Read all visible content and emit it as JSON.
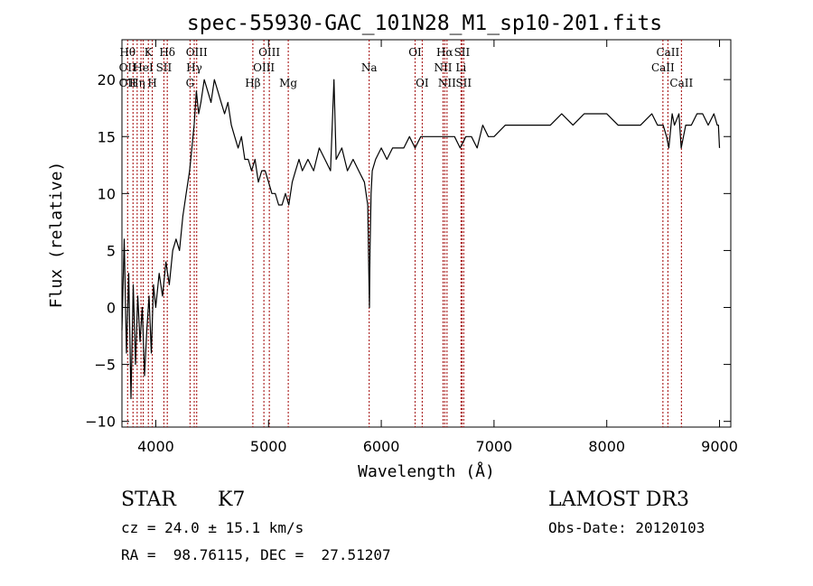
{
  "chart_data": {
    "type": "line",
    "title": "spec-55930-GAC_101N28_M1_sp10-201.fits",
    "xlabel": "Wavelength (Å)",
    "ylabel": "Flux (relative)",
    "xlim": [
      3700,
      9100
    ],
    "ylim": [
      -10.5,
      23.5
    ],
    "x_ticks": [
      4000,
      5000,
      6000,
      7000,
      8000,
      9000
    ],
    "x_tick_labels": [
      "4000",
      "5000",
      "6000",
      "7000",
      "8000",
      "9000"
    ],
    "y_ticks": [
      -10,
      -5,
      0,
      5,
      10,
      15,
      20
    ],
    "y_tick_labels": [
      "−10",
      "−5",
      "0",
      "5",
      "10",
      "15",
      "20"
    ],
    "grid": false,
    "series": [
      {
        "color": "#000000",
        "x": [
          3700,
          3720,
          3740,
          3760,
          3780,
          3800,
          3820,
          3840,
          3860,
          3880,
          3900,
          3920,
          3940,
          3960,
          3980,
          4000,
          4030,
          4060,
          4090,
          4120,
          4150,
          4180,
          4210,
          4240,
          4270,
          4300,
          4320,
          4340,
          4360,
          4380,
          4400,
          4430,
          4460,
          4490,
          4520,
          4550,
          4580,
          4610,
          4640,
          4670,
          4700,
          4730,
          4760,
          4790,
          4820,
          4850,
          4880,
          4910,
          4940,
          4970,
          5000,
          5030,
          5060,
          5090,
          5120,
          5150,
          5180,
          5210,
          5240,
          5270,
          5300,
          5350,
          5400,
          5450,
          5500,
          5550,
          5580,
          5600,
          5650,
          5700,
          5750,
          5800,
          5850,
          5880,
          5890,
          5895,
          5900,
          5910,
          5920,
          5950,
          6000,
          6050,
          6100,
          6150,
          6200,
          6250,
          6300,
          6350,
          6400,
          6450,
          6500,
          6550,
          6600,
          6650,
          6700,
          6750,
          6800,
          6850,
          6900,
          6950,
          7000,
          7100,
          7200,
          7300,
          7400,
          7500,
          7600,
          7700,
          7800,
          7900,
          8000,
          8100,
          8200,
          8300,
          8400,
          8450,
          8500,
          8530,
          8550,
          8580,
          8600,
          8640,
          8660,
          8700,
          8750,
          8800,
          8850,
          8900,
          8950,
          8980,
          8990,
          9000
        ],
        "y": [
          -2,
          6,
          -4,
          3,
          -8,
          2,
          -5,
          1,
          -3,
          0,
          -6,
          -2,
          1,
          -4,
          2,
          0,
          3,
          1,
          4,
          2,
          5,
          6,
          5,
          8,
          10,
          12,
          14,
          16,
          19,
          17,
          18,
          20,
          19,
          18,
          20,
          19,
          18,
          17,
          18,
          16,
          15,
          14,
          15,
          13,
          13,
          12,
          13,
          11,
          12,
          12,
          11,
          10,
          10,
          9,
          9,
          10,
          9,
          11,
          12,
          13,
          12,
          13,
          12,
          14,
          13,
          12,
          20,
          13,
          14,
          12,
          13,
          12,
          11,
          9,
          3,
          0,
          5,
          10,
          12,
          13,
          14,
          13,
          14,
          14,
          14,
          15,
          14,
          15,
          15,
          15,
          15,
          15,
          15,
          15,
          14,
          15,
          15,
          14,
          16,
          15,
          15,
          16,
          16,
          16,
          16,
          16,
          17,
          16,
          17,
          17,
          17,
          16,
          16,
          16,
          17,
          16,
          16,
          15,
          14,
          17,
          16,
          17,
          14,
          16,
          16,
          17,
          17,
          16,
          17,
          16,
          16,
          14
        ]
      }
    ],
    "lines": [
      {
        "x": 3750,
        "labels": [
          {
            "text": "Hθ",
            "row": 0
          },
          {
            "text": "OII",
            "row": 1
          },
          {
            "text": "OII",
            "row": 2
          }
        ]
      },
      {
        "x": 3798,
        "labels": []
      },
      {
        "x": 3835,
        "labels": [
          {
            "text": "Hη",
            "row": 2
          }
        ]
      },
      {
        "x": 3869,
        "labels": []
      },
      {
        "x": 3889,
        "labels": [
          {
            "text": "HeI",
            "row": 1
          }
        ]
      },
      {
        "x": 3934,
        "labels": [
          {
            "text": "K",
            "row": 0
          }
        ]
      },
      {
        "x": 3969,
        "labels": [
          {
            "text": "H",
            "row": 2
          }
        ]
      },
      {
        "x": 4072,
        "labels": [
          {
            "text": "SII",
            "row": 1
          }
        ]
      },
      {
        "x": 4102,
        "labels": [
          {
            "text": "Hδ",
            "row": 0
          }
        ]
      },
      {
        "x": 4304,
        "labels": [
          {
            "text": "G",
            "row": 2
          }
        ]
      },
      {
        "x": 4341,
        "labels": [
          {
            "text": "Hγ",
            "row": 1
          }
        ]
      },
      {
        "x": 4363,
        "labels": [
          {
            "text": "OIII",
            "row": 0
          }
        ]
      },
      {
        "x": 4861,
        "labels": [
          {
            "text": "Hβ",
            "row": 2
          }
        ]
      },
      {
        "x": 4959,
        "labels": [
          {
            "text": "OIII",
            "row": 1
          }
        ]
      },
      {
        "x": 5007,
        "labels": [
          {
            "text": "OIII",
            "row": 0
          }
        ]
      },
      {
        "x": 5175,
        "labels": [
          {
            "text": "Mg",
            "row": 2
          }
        ]
      },
      {
        "x": 5893,
        "labels": [
          {
            "text": "Na",
            "row": 1
          }
        ]
      },
      {
        "x": 6300,
        "labels": [
          {
            "text": "OI",
            "row": 0
          }
        ]
      },
      {
        "x": 6363,
        "labels": [
          {
            "text": "OI",
            "row": 2
          }
        ]
      },
      {
        "x": 6548,
        "labels": [
          {
            "text": "NII",
            "row": 1
          }
        ]
      },
      {
        "x": 6563,
        "labels": [
          {
            "text": "Hα",
            "row": 0
          }
        ]
      },
      {
        "x": 6583,
        "labels": [
          {
            "text": "NII",
            "row": 2
          }
        ]
      },
      {
        "x": 6707,
        "labels": [
          {
            "text": "Li",
            "row": 1
          }
        ]
      },
      {
        "x": 6716,
        "labels": [
          {
            "text": "SII",
            "row": 0
          }
        ]
      },
      {
        "x": 6731,
        "labels": [
          {
            "text": "SII",
            "row": 2
          }
        ]
      },
      {
        "x": 8498,
        "labels": [
          {
            "text": "CaII",
            "row": 1
          }
        ]
      },
      {
        "x": 8542,
        "labels": [
          {
            "text": "CaII",
            "row": 0
          }
        ]
      },
      {
        "x": 8662,
        "labels": [
          {
            "text": "CaII",
            "row": 2
          }
        ]
      }
    ]
  },
  "info": {
    "class": "STAR",
    "subclass": "K7",
    "survey": "LAMOST DR3",
    "cz": "cz = 24.0 ± 15.1 km/s",
    "obs_date": "Obs-Date: 20120103",
    "radec": "RA =  98.76115, DEC =  27.51207"
  }
}
